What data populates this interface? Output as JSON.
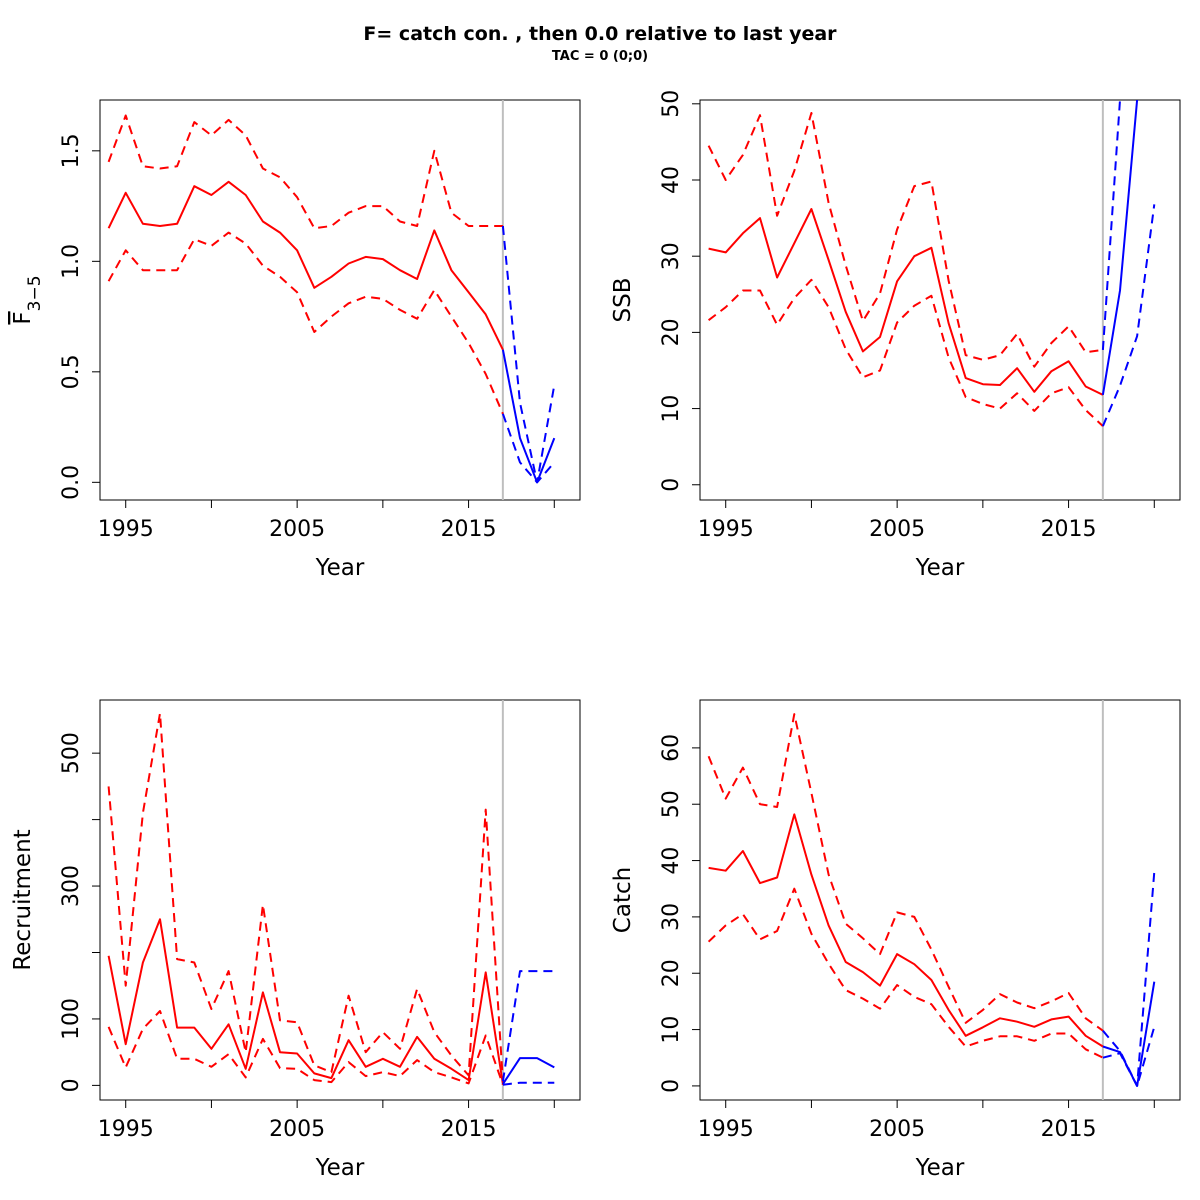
{
  "title": "F= catch con. , then 0.0  relative to last year",
  "subtitle": "TAC = 0 (0;0)",
  "colors": {
    "history": "#ff0000",
    "forecast": "#0000ff",
    "divider": "#bebebe",
    "axis": "#000000"
  },
  "chart_data": [
    {
      "type": "line",
      "ylabel": "F3-5",
      "ylabel_main": "F",
      "ylabel_sub": "3−5",
      "xlabel": "Year",
      "xlim": [
        1993.5,
        2021.5
      ],
      "ylim": [
        -0.08,
        1.73
      ],
      "xticks": [
        1995,
        2000,
        2005,
        2010,
        2015,
        2020
      ],
      "xtick_labels": [
        "1995",
        "",
        "2005",
        "",
        "2015",
        ""
      ],
      "yticks": [
        0.0,
        0.5,
        1.0,
        1.5
      ],
      "ytick_labels": [
        "0.0",
        "0.5",
        "1.0",
        "1.5"
      ],
      "divider_x": 2017,
      "series": [
        {
          "role": "history-estimate",
          "line": "solid",
          "color": "#ff0000",
          "x": [
            1994,
            1995,
            1996,
            1997,
            1998,
            1999,
            2000,
            2001,
            2002,
            2003,
            2004,
            2005,
            2006,
            2007,
            2008,
            2009,
            2010,
            2011,
            2012,
            2013,
            2014,
            2015,
            2016,
            2017
          ],
          "values": [
            1.15,
            1.31,
            1.17,
            1.16,
            1.17,
            1.34,
            1.3,
            1.36,
            1.3,
            1.18,
            1.13,
            1.05,
            0.88,
            0.93,
            0.99,
            1.02,
            1.01,
            0.96,
            0.92,
            1.14,
            0.96,
            0.86,
            0.76,
            0.6
          ]
        },
        {
          "role": "history-upper",
          "line": "dashed",
          "color": "#ff0000",
          "x": [
            1994,
            1995,
            1996,
            1997,
            1998,
            1999,
            2000,
            2001,
            2002,
            2003,
            2004,
            2005,
            2006,
            2007,
            2008,
            2009,
            2010,
            2011,
            2012,
            2013,
            2014,
            2015,
            2016,
            2017
          ],
          "values": [
            1.45,
            1.66,
            1.43,
            1.42,
            1.43,
            1.63,
            1.57,
            1.64,
            1.57,
            1.42,
            1.38,
            1.29,
            1.15,
            1.16,
            1.22,
            1.25,
            1.25,
            1.18,
            1.16,
            1.5,
            1.22,
            1.16,
            1.16,
            1.16
          ]
        },
        {
          "role": "history-lower",
          "line": "dashed",
          "color": "#ff0000",
          "x": [
            1994,
            1995,
            1996,
            1997,
            1998,
            1999,
            2000,
            2001,
            2002,
            2003,
            2004,
            2005,
            2006,
            2007,
            2008,
            2009,
            2010,
            2011,
            2012,
            2013,
            2014,
            2015,
            2016,
            2017
          ],
          "values": [
            0.91,
            1.05,
            0.96,
            0.96,
            0.96,
            1.1,
            1.07,
            1.13,
            1.08,
            0.98,
            0.93,
            0.86,
            0.68,
            0.75,
            0.81,
            0.84,
            0.83,
            0.78,
            0.74,
            0.87,
            0.75,
            0.63,
            0.49,
            0.31
          ]
        },
        {
          "role": "forecast-estimate",
          "line": "solid",
          "color": "#0000ff",
          "x": [
            2017,
            2018,
            2019,
            2020
          ],
          "values": [
            0.6,
            0.2,
            0.0,
            0.2
          ]
        },
        {
          "role": "forecast-upper",
          "line": "dashed",
          "color": "#0000ff",
          "x": [
            2017,
            2018,
            2019,
            2020
          ],
          "values": [
            1.16,
            0.36,
            0.0,
            0.44
          ]
        },
        {
          "role": "forecast-lower",
          "line": "dashed",
          "color": "#0000ff",
          "x": [
            2017,
            2018,
            2019,
            2020
          ],
          "values": [
            0.31,
            0.09,
            0.0,
            0.09
          ]
        }
      ]
    },
    {
      "type": "line",
      "ylabel": "SSB",
      "xlabel": "Year",
      "xlim": [
        1993.5,
        2021.5
      ],
      "ylim": [
        -2,
        50.5
      ],
      "xticks": [
        1995,
        2000,
        2005,
        2010,
        2015,
        2020
      ],
      "xtick_labels": [
        "1995",
        "",
        "2005",
        "",
        "2015",
        ""
      ],
      "yticks": [
        0,
        10,
        20,
        30,
        40,
        50
      ],
      "ytick_labels": [
        "0",
        "10",
        "20",
        "30",
        "40",
        "50"
      ],
      "divider_x": 2017,
      "series": [
        {
          "role": "history-estimate",
          "line": "solid",
          "color": "#ff0000",
          "x": [
            1994,
            1995,
            1996,
            1997,
            1998,
            1999,
            2000,
            2001,
            2002,
            2003,
            2004,
            2005,
            2006,
            2007,
            2008,
            2009,
            2010,
            2011,
            2012,
            2013,
            2014,
            2015,
            2016,
            2017
          ],
          "values": [
            31.0,
            30.5,
            33.0,
            35.0,
            27.2,
            31.7,
            36.2,
            29.5,
            22.7,
            17.5,
            19.4,
            26.7,
            30.0,
            31.1,
            21.2,
            14.0,
            13.2,
            13.1,
            15.3,
            12.2,
            14.9,
            16.2,
            12.9,
            11.8
          ]
        },
        {
          "role": "history-upper",
          "line": "dashed",
          "color": "#ff0000",
          "x": [
            1994,
            1995,
            1996,
            1997,
            1998,
            1999,
            2000,
            2001,
            2002,
            2003,
            2004,
            2005,
            2006,
            2007,
            2008,
            2009,
            2010,
            2011,
            2012,
            2013,
            2014,
            2015,
            2016,
            2017
          ],
          "values": [
            44.5,
            40.0,
            43.3,
            48.5,
            35.3,
            41.2,
            48.8,
            37.0,
            28.8,
            21.5,
            25.1,
            33.5,
            39.2,
            39.8,
            26.8,
            17.0,
            16.4,
            17.0,
            19.8,
            15.5,
            18.6,
            20.8,
            17.4,
            17.7
          ]
        },
        {
          "role": "history-lower",
          "line": "dashed",
          "color": "#ff0000",
          "x": [
            1994,
            1995,
            1996,
            1997,
            1998,
            1999,
            2000,
            2001,
            2002,
            2003,
            2004,
            2005,
            2006,
            2007,
            2008,
            2009,
            2010,
            2011,
            2012,
            2013,
            2014,
            2015,
            2016,
            2017
          ],
          "values": [
            21.6,
            23.3,
            25.5,
            25.5,
            21.0,
            24.5,
            26.9,
            23.3,
            17.8,
            14.1,
            15.0,
            21.3,
            23.5,
            24.8,
            16.7,
            11.5,
            10.6,
            10.0,
            12.0,
            9.7,
            12.0,
            12.8,
            9.8,
            7.7
          ]
        },
        {
          "role": "forecast-estimate",
          "line": "solid",
          "color": "#0000ff",
          "x": [
            2017,
            2018,
            2019,
            2020
          ],
          "values": [
            11.8,
            25.5,
            50.5,
            null
          ]
        },
        {
          "role": "forecast-upper",
          "line": "dashed",
          "color": "#0000ff",
          "x": [
            2017,
            2018,
            2019,
            2020
          ],
          "values": [
            17.7,
            50.5,
            null,
            null
          ]
        },
        {
          "role": "forecast-lower",
          "line": "dashed",
          "color": "#0000ff",
          "x": [
            2017,
            2018,
            2019,
            2020
          ],
          "values": [
            7.7,
            13.0,
            19.5,
            36.8
          ]
        }
      ]
    },
    {
      "type": "line",
      "ylabel": "Recruitment",
      "xlabel": "Year",
      "xlim": [
        1993.5,
        2021.5
      ],
      "ylim": [
        -22,
        580
      ],
      "xticks": [
        1995,
        2000,
        2005,
        2010,
        2015,
        2020
      ],
      "xtick_labels": [
        "1995",
        "",
        "2005",
        "",
        "2015",
        ""
      ],
      "yticks": [
        0,
        100,
        200,
        300,
        400,
        500
      ],
      "ytick_labels": [
        "0",
        "100",
        "",
        "300",
        "",
        "500"
      ],
      "divider_x": 2017,
      "series": [
        {
          "role": "history-estimate",
          "line": "solid",
          "color": "#ff0000",
          "x": [
            1994,
            1995,
            1996,
            1997,
            1998,
            1999,
            2000,
            2001,
            2002,
            2003,
            2004,
            2005,
            2006,
            2007,
            2008,
            2009,
            2010,
            2011,
            2012,
            2013,
            2014,
            2015,
            2016,
            2017
          ],
          "values": [
            195,
            62,
            185,
            250,
            87,
            87,
            55,
            92,
            25,
            140,
            50,
            48,
            18,
            11,
            68,
            28,
            40,
            28,
            73,
            40,
            25,
            8,
            170,
            2
          ]
        },
        {
          "role": "history-upper",
          "line": "dashed",
          "color": "#ff0000",
          "x": [
            1994,
            1995,
            1996,
            1997,
            1998,
            1999,
            2000,
            2001,
            2002,
            2003,
            2004,
            2005,
            2006,
            2007,
            2008,
            2009,
            2010,
            2011,
            2012,
            2013,
            2014,
            2015,
            2016,
            2017
          ],
          "values": [
            450,
            150,
            410,
            560,
            190,
            185,
            115,
            172,
            50,
            272,
            98,
            95,
            30,
            20,
            135,
            50,
            80,
            55,
            145,
            80,
            45,
            15,
            415,
            6
          ]
        },
        {
          "role": "history-lower",
          "line": "dashed",
          "color": "#ff0000",
          "x": [
            1994,
            1995,
            1996,
            1997,
            1998,
            1999,
            2000,
            2001,
            2002,
            2003,
            2004,
            2005,
            2006,
            2007,
            2008,
            2009,
            2010,
            2011,
            2012,
            2013,
            2014,
            2015,
            2016,
            2017
          ],
          "values": [
            88,
            27,
            85,
            112,
            40,
            40,
            28,
            47,
            12,
            70,
            26,
            25,
            8,
            5,
            35,
            14,
            20,
            14,
            38,
            20,
            12,
            3,
            75,
            1
          ]
        },
        {
          "role": "forecast-estimate",
          "line": "solid",
          "color": "#0000ff",
          "x": [
            2017,
            2018,
            2019,
            2020
          ],
          "values": [
            2,
            41,
            41,
            27
          ]
        },
        {
          "role": "forecast-upper",
          "line": "dashed",
          "color": "#0000ff",
          "x": [
            2017,
            2018,
            2019,
            2020
          ],
          "values": [
            6,
            172,
            172,
            172
          ]
        },
        {
          "role": "forecast-lower",
          "line": "dashed",
          "color": "#0000ff",
          "x": [
            2017,
            2018,
            2019,
            2020
          ],
          "values": [
            1,
            4,
            4,
            4
          ]
        }
      ]
    },
    {
      "type": "line",
      "ylabel": "Catch",
      "xlabel": "Year",
      "xlim": [
        1993.5,
        2021.5
      ],
      "ylim": [
        -2.5,
        68.5
      ],
      "xticks": [
        1995,
        2000,
        2005,
        2010,
        2015,
        2020
      ],
      "xtick_labels": [
        "1995",
        "",
        "2005",
        "",
        "2015",
        ""
      ],
      "yticks": [
        0,
        10,
        20,
        30,
        40,
        50,
        60
      ],
      "ytick_labels": [
        "0",
        "10",
        "20",
        "30",
        "40",
        "50",
        "60"
      ],
      "divider_x": 2017,
      "series": [
        {
          "role": "history-estimate",
          "line": "solid",
          "color": "#ff0000",
          "x": [
            1994,
            1995,
            1996,
            1997,
            1998,
            1999,
            2000,
            2001,
            2002,
            2003,
            2004,
            2005,
            2006,
            2007,
            2008,
            2009,
            2010,
            2011,
            2012,
            2013,
            2014,
            2015,
            2016,
            2017
          ],
          "values": [
            38.7,
            38.2,
            41.7,
            36.0,
            37.0,
            48.2,
            37.5,
            28.5,
            22.0,
            20.2,
            17.8,
            23.4,
            21.6,
            18.8,
            13.5,
            8.9,
            10.4,
            12.0,
            11.4,
            10.5,
            11.8,
            12.3,
            8.9,
            7.0
          ]
        },
        {
          "role": "history-upper",
          "line": "dashed",
          "color": "#ff0000",
          "x": [
            1994,
            1995,
            1996,
            1997,
            1998,
            1999,
            2000,
            2001,
            2002,
            2003,
            2004,
            2005,
            2006,
            2007,
            2008,
            2009,
            2010,
            2011,
            2012,
            2013,
            2014,
            2015,
            2016,
            2017
          ],
          "values": [
            58.5,
            51.0,
            56.5,
            50.0,
            49.5,
            66.0,
            52.0,
            37.5,
            28.8,
            26.2,
            23.4,
            30.8,
            30.0,
            24.2,
            17.6,
            11.2,
            13.5,
            16.3,
            14.8,
            13.8,
            15.0,
            16.5,
            12.0,
            9.8
          ]
        },
        {
          "role": "history-lower",
          "line": "dashed",
          "color": "#ff0000",
          "x": [
            1994,
            1995,
            1996,
            1997,
            1998,
            1999,
            2000,
            2001,
            2002,
            2003,
            2004,
            2005,
            2006,
            2007,
            2008,
            2009,
            2010,
            2011,
            2012,
            2013,
            2014,
            2015,
            2016,
            2017
          ],
          "values": [
            25.6,
            28.5,
            30.5,
            26.0,
            27.5,
            35.0,
            27.0,
            21.7,
            17.0,
            15.5,
            13.7,
            17.9,
            15.8,
            14.5,
            10.5,
            7.0,
            8.0,
            8.8,
            8.8,
            8.0,
            9.3,
            9.3,
            6.5,
            5.0
          ]
        },
        {
          "role": "forecast-estimate",
          "line": "solid",
          "color": "#0000ff",
          "x": [
            2017,
            2018,
            2019,
            2020
          ],
          "values": [
            7.0,
            6.0,
            0.0,
            18.5
          ]
        },
        {
          "role": "forecast-upper",
          "line": "dashed",
          "color": "#0000ff",
          "x": [
            2017,
            2018,
            2019,
            2020
          ],
          "values": [
            9.8,
            6.2,
            0.0,
            38.0
          ]
        },
        {
          "role": "forecast-lower",
          "line": "dashed",
          "color": "#0000ff",
          "x": [
            2017,
            2018,
            2019,
            2020
          ],
          "values": [
            5.0,
            5.8,
            0.0,
            10.5
          ]
        }
      ]
    }
  ]
}
